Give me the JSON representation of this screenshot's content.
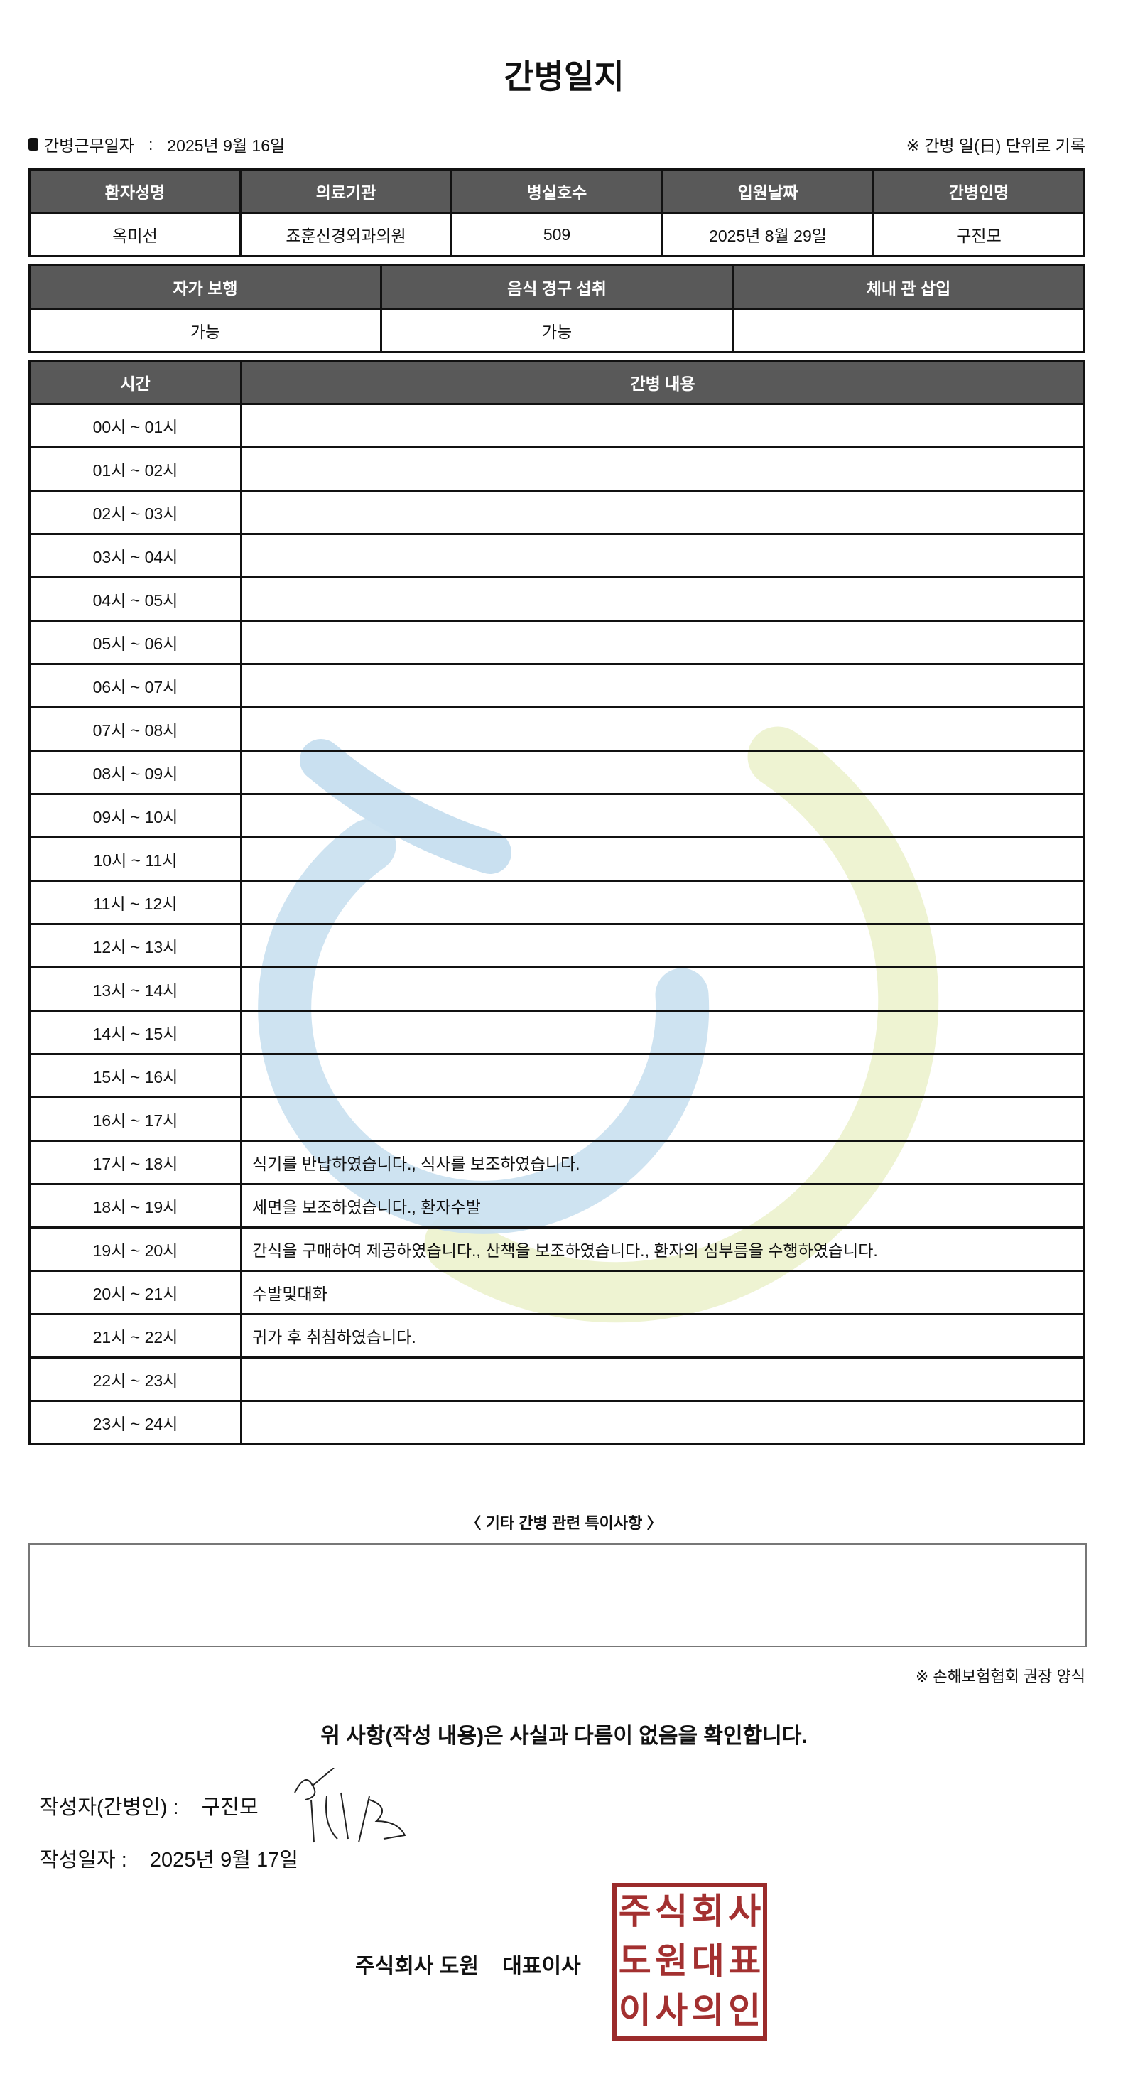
{
  "title": "간병일지",
  "work_date": {
    "label": "간병근무일자",
    "separator": ":",
    "value": "2025년 9월 16일"
  },
  "unit_note": "※ 간병 일(日) 단위로 기록",
  "patient_info": {
    "headers": [
      "환자성명",
      "의료기관",
      "병실호수",
      "입원날짜",
      "간병인명"
    ],
    "values": [
      "옥미선",
      "죠훈신경외과의원",
      "509",
      "2025년 8월 29일",
      "구진모"
    ]
  },
  "status_info": {
    "headers": [
      "자가 보행",
      "음식 경구 섭취",
      "체내 관 삽입"
    ],
    "values": [
      "가능",
      "가능",
      ""
    ]
  },
  "log": {
    "headers": [
      "시간",
      "간병 내용"
    ],
    "rows": [
      {
        "time": "00시 ~ 01시",
        "content": ""
      },
      {
        "time": "01시 ~ 02시",
        "content": ""
      },
      {
        "time": "02시 ~ 03시",
        "content": ""
      },
      {
        "time": "03시 ~ 04시",
        "content": ""
      },
      {
        "time": "04시 ~ 05시",
        "content": ""
      },
      {
        "time": "05시 ~ 06시",
        "content": ""
      },
      {
        "time": "06시 ~ 07시",
        "content": ""
      },
      {
        "time": "07시 ~ 08시",
        "content": ""
      },
      {
        "time": "08시 ~ 09시",
        "content": ""
      },
      {
        "time": "09시 ~ 10시",
        "content": ""
      },
      {
        "time": "10시 ~ 11시",
        "content": ""
      },
      {
        "time": "11시 ~ 12시",
        "content": ""
      },
      {
        "time": "12시 ~ 13시",
        "content": ""
      },
      {
        "time": "13시 ~ 14시",
        "content": ""
      },
      {
        "time": "14시 ~ 15시",
        "content": ""
      },
      {
        "time": "15시 ~ 16시",
        "content": ""
      },
      {
        "time": "16시 ~ 17시",
        "content": ""
      },
      {
        "time": "17시 ~ 18시",
        "content": "식기를 반납하였습니다., 식사를 보조하였습니다."
      },
      {
        "time": "18시 ~ 19시",
        "content": "세면을 보조하였습니다., 환자수발"
      },
      {
        "time": "19시 ~ 20시",
        "content": "간식을 구매하여 제공하였습니다., 산책을 보조하였습니다., 환자의 심부름을 수행하였습니다."
      },
      {
        "time": "20시 ~ 21시",
        "content": "수발및대화"
      },
      {
        "time": "21시 ~ 22시",
        "content": "귀가 후 취침하였습니다."
      },
      {
        "time": "22시 ~ 23시",
        "content": ""
      },
      {
        "time": "23시 ~ 24시",
        "content": ""
      }
    ]
  },
  "special_notes": {
    "label": "〈 기타 간병 관련 특이사항 〉",
    "value": ""
  },
  "form_note": "※ 손해보험협회 권장 양식",
  "confirmation": "위 사항(작성 내용)은 사실과 다름이 없음을 확인합니다.",
  "writer": {
    "label": "작성자(간병인) :",
    "name": "구진모"
  },
  "written_date": {
    "label": "작성일자 :",
    "value": "2025년 9월 17일"
  },
  "company": "주식회사 도원    대표이사",
  "stamp_text": [
    "주",
    "식",
    "회",
    "사",
    "도",
    "원",
    "대",
    "표",
    "이",
    "사",
    "의",
    "인"
  ],
  "colors": {
    "header_bg": "#595959",
    "stamp": "#9b2b2b",
    "watermark_blue": "#c9e0f0",
    "watermark_yellow": "#eef3d2"
  }
}
